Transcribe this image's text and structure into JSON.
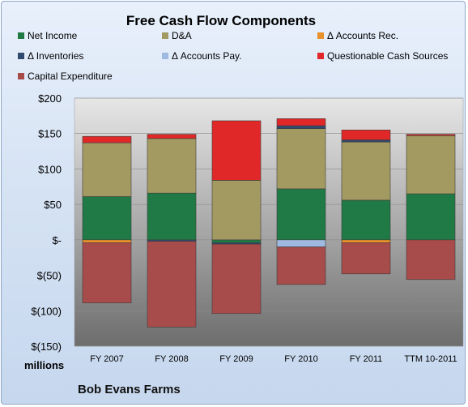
{
  "chart_data": {
    "type": "bar",
    "stacked": true,
    "title": "Free Cash Flow Components",
    "ylabel": "millions",
    "ylim": [
      -150,
      200
    ],
    "yticks": [
      200,
      150,
      100,
      50,
      0,
      -50,
      -100,
      -150
    ],
    "ytick_labels": [
      "$200",
      "$150",
      "$100",
      "$50",
      "$-",
      "$(50)",
      "$(100)",
      "$(150)"
    ],
    "grid": true,
    "legend_position": "top",
    "categories": [
      "FY 2007",
      "FY 2008",
      "FY 2009",
      "FY 2010",
      "FY 2011",
      "TTM 10-2011"
    ],
    "series": [
      {
        "name": "Net Income",
        "color": "#1f7a45",
        "values": [
          61,
          66,
          -4,
          72,
          56,
          65
        ]
      },
      {
        "name": "D&A",
        "color": "#a39a62",
        "values": [
          76,
          77,
          84,
          85,
          82,
          82
        ]
      },
      {
        "name": "Δ Accounts Rec.",
        "color": "#e8902a",
        "values": [
          -4,
          0,
          0,
          0,
          -4,
          0
        ]
      },
      {
        "name": "Δ Inventories",
        "color": "#2f4a6e",
        "values": [
          0,
          -2,
          -2,
          4,
          3,
          0
        ]
      },
      {
        "name": "Δ Accounts Pay.",
        "color": "#9fb9e0",
        "values": [
          0,
          0,
          0,
          -10,
          0,
          0
        ]
      },
      {
        "name": "Questionable Cash Sources",
        "color": "#e02828",
        "values": [
          9,
          6,
          84,
          10,
          14,
          2
        ]
      },
      {
        "name": "Capital Expenditure",
        "color": "#a84b4b",
        "values": [
          -85,
          -121,
          -98,
          -53,
          -44,
          -56
        ]
      }
    ],
    "company": "Bob Evans Farms"
  }
}
